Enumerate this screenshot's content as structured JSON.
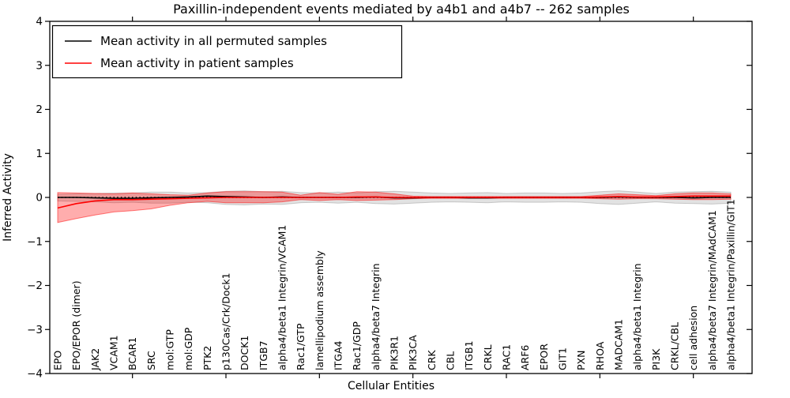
{
  "chart_data": {
    "type": "line",
    "title": "Paxillin-independent events mediated by a4b1 and a4b7 -- 262 samples",
    "xlabel": "Cellular Entities",
    "ylabel": "Inferred Activity",
    "ylim": [
      -4,
      4
    ],
    "yticks": [
      -4,
      -3,
      -2,
      -1,
      0,
      1,
      2,
      3,
      4
    ],
    "x_major_tick_positions": [
      5,
      10,
      15,
      20,
      25,
      30,
      35
    ],
    "grid": false,
    "legend_position": "upper left",
    "zero_line": {
      "y": 0,
      "style": "dotted",
      "color": "#000000"
    },
    "categories": [
      "EPO",
      "EPO/EPOR (dimer)",
      "JAK2",
      "VCAM1",
      "BCAR1",
      "SRC",
      "mol:GTP",
      "mol:GDP",
      "PTK2",
      "p130Cas/Crk/Dock1",
      "DOCK1",
      "ITGB7",
      "alpha4/beta1 Integrin/VCAM1",
      "Rac1/GTP",
      "lamellipodium assembly",
      "ITGA4",
      "Rac1/GDP",
      "alpha4/beta7 Integrin",
      "PIK3R1",
      "PIK3CA",
      "CRK",
      "CBL",
      "ITGB1",
      "CRKL",
      "RAC1",
      "ARF6",
      "EPOR",
      "GIT1",
      "PXN",
      "RHOA",
      "MADCAM1",
      "alpha4/beta1 Integrin",
      "PI3K",
      "CRKL/CBL",
      "cell adhesion",
      "alpha4/beta7 Integrin/MAdCAM1",
      "alpha4/beta1 Integrin/Paxillin/GIT1"
    ],
    "series": [
      {
        "name": "Mean activity in all permuted samples",
        "color": "#000000",
        "values": [
          0.0,
          0.0,
          -0.01,
          -0.02,
          -0.02,
          -0.01,
          0.0,
          0.01,
          0.03,
          0.02,
          0.01,
          0.0,
          0.01,
          0.0,
          0.0,
          0.0,
          0.0,
          0.01,
          -0.01,
          -0.01,
          0.0,
          0.0,
          -0.01,
          -0.01,
          0.0,
          0.0,
          0.0,
          0.0,
          0.0,
          0.0,
          0.01,
          0.0,
          0.0,
          0.0,
          -0.01,
          0.0,
          0.0
        ]
      },
      {
        "name": "Mean activity in patient samples",
        "color": "#ff0000",
        "values": [
          -0.24,
          -0.14,
          -0.08,
          -0.05,
          -0.05,
          -0.04,
          -0.03,
          -0.02,
          -0.01,
          0.0,
          0.0,
          0.0,
          0.0,
          0.0,
          0.0,
          0.0,
          0.01,
          0.01,
          0.0,
          0.0,
          0.0,
          0.0,
          0.0,
          0.0,
          0.0,
          0.0,
          0.0,
          0.0,
          0.0,
          0.01,
          0.02,
          0.01,
          0.01,
          0.02,
          0.03,
          0.03,
          0.03
        ]
      }
    ],
    "bands": [
      {
        "name": "permuted-samples-band",
        "fill": "rgba(150,150,150,0.28)",
        "edge": "rgba(120,120,120,0.35)",
        "upper": [
          0.07,
          0.08,
          0.09,
          0.1,
          0.1,
          0.12,
          0.12,
          0.1,
          0.11,
          0.14,
          0.15,
          0.13,
          0.14,
          0.11,
          0.1,
          0.12,
          0.1,
          0.13,
          0.14,
          0.12,
          0.1,
          0.09,
          0.1,
          0.11,
          0.09,
          0.1,
          0.1,
          0.09,
          0.1,
          0.13,
          0.15,
          0.12,
          0.09,
          0.12,
          0.13,
          0.14,
          0.12
        ],
        "lower": [
          -0.08,
          -0.09,
          -0.1,
          -0.12,
          -0.11,
          -0.13,
          -0.13,
          -0.11,
          -0.12,
          -0.16,
          -0.17,
          -0.15,
          -0.16,
          -0.12,
          -0.11,
          -0.13,
          -0.11,
          -0.14,
          -0.15,
          -0.13,
          -0.11,
          -0.1,
          -0.11,
          -0.12,
          -0.1,
          -0.11,
          -0.11,
          -0.1,
          -0.11,
          -0.14,
          -0.16,
          -0.13,
          -0.1,
          -0.13,
          -0.14,
          -0.15,
          -0.13
        ]
      },
      {
        "name": "patient-samples-band",
        "fill": "rgba(255,0,0,0.32)",
        "edge": "rgba(255,0,0,0.5)",
        "upper": [
          0.11,
          0.1,
          0.09,
          0.08,
          0.1,
          0.08,
          0.06,
          0.05,
          0.1,
          0.13,
          0.13,
          0.13,
          0.12,
          0.05,
          0.11,
          0.07,
          0.13,
          0.12,
          0.08,
          0.03,
          0.02,
          0.02,
          0.02,
          0.02,
          0.02,
          0.02,
          0.02,
          0.02,
          0.02,
          0.05,
          0.08,
          0.06,
          0.04,
          0.08,
          0.1,
          0.1,
          0.08
        ],
        "lower": [
          -0.57,
          -0.48,
          -0.4,
          -0.33,
          -0.3,
          -0.26,
          -0.18,
          -0.12,
          -0.09,
          -0.12,
          -0.12,
          -0.12,
          -0.1,
          -0.05,
          -0.07,
          -0.05,
          -0.07,
          -0.06,
          -0.05,
          -0.03,
          -0.02,
          -0.02,
          -0.02,
          -0.02,
          -0.02,
          -0.02,
          -0.02,
          -0.02,
          -0.02,
          -0.03,
          -0.04,
          -0.03,
          -0.03,
          -0.04,
          -0.05,
          -0.05,
          -0.04
        ]
      }
    ]
  }
}
